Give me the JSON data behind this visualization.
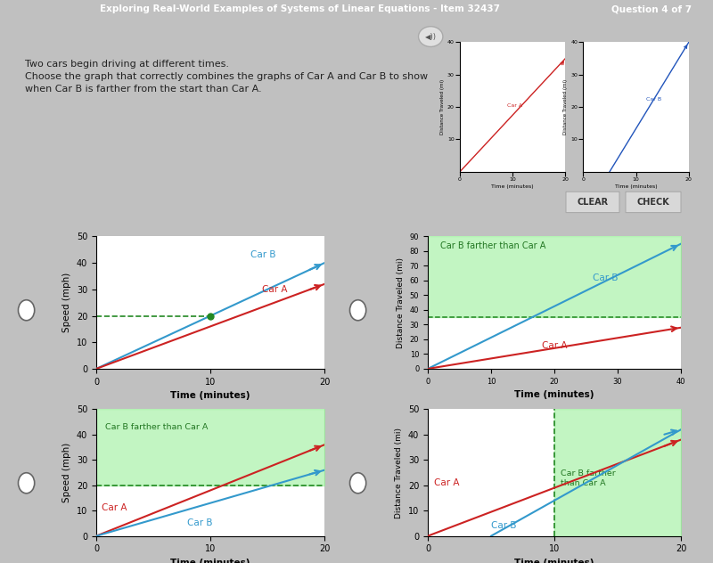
{
  "bg_color": "#c0c0c0",
  "header_bg": "#3a3a5a",
  "header_text": "Exploring Real-World Examples of Systems of Linear Equations - Item 32437",
  "header_right": "Question 4 of 7",
  "header_text_color": "#ffffff",
  "panel_bg": "#ffffff",
  "panel_border": "#bbbbbb",
  "text_box_text": "Two cars begin driving at different times.\nChoose the graph that correctly combines the graphs of Car A and Car B to show\nwhen Car B is farther from the start than Car A.",
  "green_shade": "#90ee90",
  "car_a_color": "#cc2222",
  "car_b_color": "#3399cc",
  "dashed_color": "#228822",
  "dot_color": "#228822",
  "ref_car_a_color": "#cc2222",
  "ref_car_b_color": "#2255bb",
  "radio_bg": "#c0c0c0",
  "btn_bg": "#d8d8d8",
  "btn_border": "#aaaaaa"
}
